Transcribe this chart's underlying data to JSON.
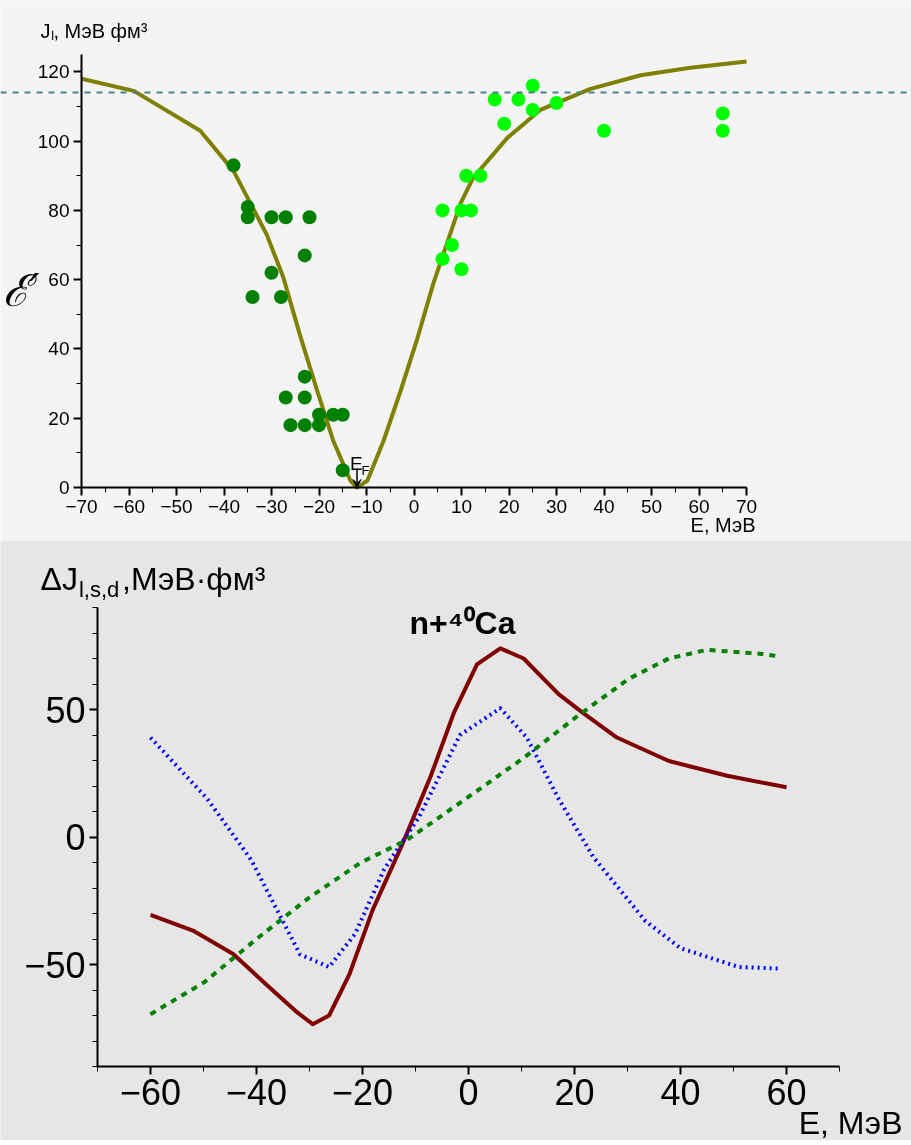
{
  "chart_data": [
    {
      "type": "scatter",
      "ylabel": "ℰ′",
      "title": "Jₗ, МэВ фм³",
      "xlabel": "E, МэВ",
      "xlim": [
        -70,
        70
      ],
      "xticks": [
        -70,
        -60,
        -50,
        -40,
        -30,
        -20,
        -10,
        0,
        10,
        20,
        30,
        40,
        50,
        60,
        70
      ],
      "ylim": [
        0,
        125
      ],
      "yticks": [
        0,
        20,
        40,
        60,
        80,
        100,
        120
      ],
      "grid": false,
      "marker": "circle",
      "series": [
        {
          "type": "scatter",
          "color": "#008000",
          "x": [
            -38,
            -35,
            -35,
            -30,
            -27,
            -22,
            -23,
            -30,
            -34,
            -28,
            -23,
            -27,
            -23,
            -26,
            -23,
            -20,
            -20,
            -17,
            -15,
            -15
          ],
          "values": [
            93,
            81,
            78,
            78,
            78,
            78,
            67,
            62,
            55,
            55,
            32,
            26,
            26,
            18,
            18,
            18,
            21,
            21,
            21,
            5
          ]
        },
        {
          "type": "scatter",
          "color": "#00ff00",
          "x": [
            6,
            8,
            6,
            10,
            10,
            12,
            11,
            14,
            19,
            17,
            22,
            25,
            25,
            30,
            40,
            65,
            65
          ],
          "values": [
            80,
            70,
            66,
            63,
            80,
            80,
            90,
            90,
            105,
            112,
            112,
            116,
            109,
            111,
            103,
            108,
            103
          ]
        },
        {
          "type": "line",
          "color": "#808000",
          "marker": "none",
          "line_style": "solid",
          "x": [
            -70,
            -59,
            -45,
            -38,
            -31,
            -27.5,
            -24,
            -20.4,
            -17,
            -13.4,
            -12,
            -9.8,
            -6.4,
            -2.8,
            0.7,
            4.1,
            9.8,
            12.5,
            19.7,
            26.6,
            37,
            47.7,
            58.2,
            70
          ],
          "values": [
            118,
            114.5,
            103,
            91.4,
            73,
            60.6,
            44,
            28,
            13.5,
            2,
            0,
            2,
            13.5,
            28,
            43,
            59,
            82,
            89.5,
            101,
            109,
            115,
            119,
            121.2,
            123
          ]
        }
      ],
      "ref_lines": [
        {
          "axis": "y",
          "value": 114,
          "color": "#4a8088",
          "line_style": "dashed"
        }
      ],
      "annotations": [
        {
          "text": "E$_{F}$",
          "x": -12,
          "y": 0
        }
      ]
    },
    {
      "type": "line",
      "title": "n+⁴⁰Ca",
      "ylabel": "ΔJ$_{l,s,d}$,МэВ·фм³",
      "xlabel": "E, МэВ",
      "xlim": [
        -70,
        70
      ],
      "xticks": [
        -60,
        -40,
        -20,
        0,
        20,
        40,
        60
      ],
      "ylim": [
        -90,
        90
      ],
      "yticks": [
        -50,
        0,
        50
      ],
      "grid": false,
      "marker": "none",
      "series": [
        {
          "color": "#800000",
          "line_style": "solid",
          "x": [
            -60,
            -52,
            -44.4,
            -37.8,
            -32.3,
            -29.4,
            -26.3,
            -22.5,
            -18.1,
            -12.6,
            -7.1,
            -2.7,
            1.6,
            6,
            10.4,
            17,
            21.4,
            28,
            37.8,
            48.8,
            60
          ],
          "values": [
            -30.5,
            -36.7,
            -45.9,
            -58.5,
            -68.8,
            -73.4,
            -70,
            -54,
            -28.7,
            -3.4,
            24,
            49,
            67.7,
            74,
            70,
            56,
            49,
            39,
            29.8,
            24,
            19.5
          ]
        },
        {
          "color": "#0000ff",
          "line_style": "dotted",
          "x": [
            -60,
            -49.3,
            -41,
            -31.8,
            -26.3,
            -21.4,
            -15.9,
            -9.3,
            -1.6,
            6,
            11,
            17,
            23.6,
            33.4,
            40,
            51,
            58.7
          ],
          "values": [
            39,
            15,
            -9,
            -46,
            -51,
            -38,
            -12.6,
            8,
            40,
            50.5,
            39,
            15,
            -8,
            -33,
            -43.6,
            -51,
            -51.6
          ]
        },
        {
          "color": "#008000",
          "line_style": "dashed",
          "x": [
            -60,
            -49.9,
            -40,
            -30.2,
            -20.3,
            -11.5,
            -0.5,
            10.4,
            20.3,
            30.2,
            37.8,
            45,
            55.4,
            58
          ],
          "values": [
            -69.5,
            -57,
            -40,
            -24,
            -10,
            -1,
            15,
            31,
            47,
            62,
            70,
            73.4,
            71.8,
            71
          ]
        }
      ]
    }
  ]
}
